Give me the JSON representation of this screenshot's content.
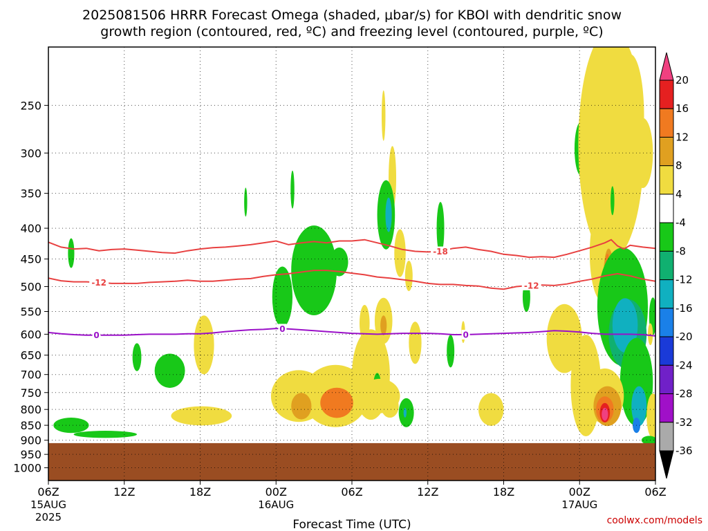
{
  "title_line1": "2025081506 HRRR Forecast Omega (shaded, μbar/s) for KBOI with dendritic snow",
  "title_line2": "growth region (contoured, red, ºC) and freezing level (contoured, purple, ºC)",
  "credit": "coolwx.com/models",
  "chart_data": {
    "type": "heatmap",
    "xlabel": "Forecast Time (UTC)",
    "x_ticks": [
      {
        "hour": 0,
        "label": "06Z",
        "sub1": "15AUG",
        "sub2": "2025"
      },
      {
        "hour": 6,
        "label": "12Z",
        "sub1": "",
        "sub2": ""
      },
      {
        "hour": 12,
        "label": "18Z",
        "sub1": "",
        "sub2": ""
      },
      {
        "hour": 18,
        "label": "00Z",
        "sub1": "16AUG",
        "sub2": ""
      },
      {
        "hour": 24,
        "label": "06Z",
        "sub1": "",
        "sub2": ""
      },
      {
        "hour": 30,
        "label": "12Z",
        "sub1": "",
        "sub2": ""
      },
      {
        "hour": 36,
        "label": "18Z",
        "sub1": "",
        "sub2": ""
      },
      {
        "hour": 42,
        "label": "00Z",
        "sub1": "17AUG",
        "sub2": ""
      },
      {
        "hour": 48,
        "label": "06Z",
        "sub1": "",
        "sub2": ""
      }
    ],
    "x_range_hours": [
      0,
      48
    ],
    "y_axis": "pressure (hPa), log scale, reversed",
    "y_range_hpa": [
      1050,
      200
    ],
    "y_ticks": [
      250,
      300,
      350,
      400,
      450,
      500,
      550,
      600,
      650,
      700,
      750,
      800,
      850,
      900,
      950,
      1000
    ],
    "grid": true,
    "ground_top_hpa": 910,
    "ground_color": "#9a4d22",
    "colorbar": {
      "labels": [
        "20",
        "16",
        "12",
        "8",
        "4",
        "-4",
        "-8",
        "-12",
        "-16",
        "-20",
        "-24",
        "-28",
        "-32",
        "-36"
      ],
      "colors": [
        "#f04080",
        "#e52020",
        "#f07a20",
        "#e0a020",
        "#f0dc40",
        "#ffffff",
        "#18c818",
        "#10b070",
        "#10b0c0",
        "#1a80e8",
        "#1a3ad8",
        "#7020c8",
        "#a010c8",
        "#aaaaaa",
        "#000000"
      ]
    },
    "contours": [
      {
        "name": "-18",
        "color": "#e84040",
        "label": "-18",
        "label_hour": 31.0,
        "points": [
          [
            0,
            422
          ],
          [
            1,
            430
          ],
          [
            2,
            433
          ],
          [
            3,
            432
          ],
          [
            4,
            436
          ],
          [
            5,
            434
          ],
          [
            6,
            433
          ],
          [
            7,
            435
          ],
          [
            8,
            437
          ],
          [
            9,
            439
          ],
          [
            10,
            440
          ],
          [
            11,
            436
          ],
          [
            12,
            433
          ],
          [
            13,
            431
          ],
          [
            14,
            430
          ],
          [
            15,
            428
          ],
          [
            16,
            426
          ],
          [
            17,
            423
          ],
          [
            18,
            420
          ],
          [
            19,
            426
          ],
          [
            20,
            423
          ],
          [
            21,
            421
          ],
          [
            22,
            423
          ],
          [
            23,
            420
          ],
          [
            24,
            420
          ],
          [
            25,
            418
          ],
          [
            26,
            423
          ],
          [
            27,
            428
          ],
          [
            28,
            434
          ],
          [
            29,
            437
          ],
          [
            30,
            438
          ],
          [
            31,
            437
          ],
          [
            32,
            432
          ],
          [
            33,
            430
          ],
          [
            34,
            434
          ],
          [
            35,
            437
          ],
          [
            36,
            442
          ],
          [
            37,
            444
          ],
          [
            38,
            447
          ],
          [
            39,
            446
          ],
          [
            40,
            447
          ],
          [
            41,
            442
          ],
          [
            42,
            436
          ],
          [
            43,
            430
          ],
          [
            44,
            423
          ],
          [
            44.5,
            418
          ],
          [
            45,
            428
          ],
          [
            45.5,
            433
          ],
          [
            46,
            427
          ],
          [
            47,
            430
          ],
          [
            48,
            432
          ]
        ]
      },
      {
        "name": "-12",
        "color": "#e84040",
        "label": "-12",
        "label_hour": 4.0,
        "points": [
          [
            0,
            484
          ],
          [
            1,
            489
          ],
          [
            2,
            491
          ],
          [
            3,
            491
          ],
          [
            4,
            492
          ],
          [
            5,
            494
          ],
          [
            6,
            494
          ],
          [
            7,
            494
          ],
          [
            8,
            492
          ],
          [
            9,
            491
          ],
          [
            10,
            490
          ],
          [
            11,
            488
          ],
          [
            12,
            490
          ],
          [
            13,
            490
          ],
          [
            14,
            488
          ],
          [
            15,
            486
          ],
          [
            16,
            485
          ],
          [
            17,
            481
          ],
          [
            18,
            478
          ],
          [
            19,
            476
          ],
          [
            20,
            473
          ],
          [
            21,
            470
          ],
          [
            22,
            470
          ],
          [
            23,
            472
          ],
          [
            24,
            475
          ],
          [
            25,
            478
          ],
          [
            26,
            482
          ],
          [
            27,
            484
          ],
          [
            28,
            487
          ],
          [
            29,
            490
          ],
          [
            30,
            494
          ],
          [
            31,
            496
          ],
          [
            32,
            496
          ],
          [
            33,
            498
          ],
          [
            34,
            499
          ],
          [
            35,
            503
          ],
          [
            36,
            505
          ],
          [
            37,
            500
          ],
          [
            38,
            498
          ],
          [
            39,
            497
          ],
          [
            40,
            498
          ],
          [
            41,
            495
          ],
          [
            42,
            490
          ],
          [
            43,
            486
          ],
          [
            44,
            480
          ],
          [
            45,
            476
          ],
          [
            46,
            480
          ],
          [
            47,
            486
          ],
          [
            48,
            490
          ]
        ]
      },
      {
        "name": "0",
        "color": "#9a10c8",
        "label": "0",
        "label_hour": 3.8,
        "points": [
          [
            0,
            596
          ],
          [
            1,
            599
          ],
          [
            2,
            601
          ],
          [
            3,
            602
          ],
          [
            4,
            602
          ],
          [
            5,
            602
          ],
          [
            6,
            602
          ],
          [
            7,
            601
          ],
          [
            8,
            600
          ],
          [
            9,
            600
          ],
          [
            10,
            600
          ],
          [
            11,
            599
          ],
          [
            12,
            599
          ],
          [
            13,
            597
          ],
          [
            14,
            594
          ],
          [
            15,
            592
          ],
          [
            16,
            590
          ],
          [
            17,
            589
          ],
          [
            18,
            587
          ],
          [
            19,
            588
          ],
          [
            20,
            590
          ],
          [
            21,
            592
          ],
          [
            22,
            594
          ],
          [
            23,
            596
          ],
          [
            24,
            598
          ],
          [
            25,
            599
          ],
          [
            26,
            600
          ],
          [
            27,
            599
          ],
          [
            28,
            598
          ],
          [
            29,
            598
          ],
          [
            30,
            598
          ],
          [
            31,
            599
          ],
          [
            32,
            601
          ],
          [
            33,
            601
          ],
          [
            34,
            600
          ],
          [
            35,
            599
          ],
          [
            36,
            598
          ],
          [
            37,
            597
          ],
          [
            38,
            596
          ],
          [
            39,
            594
          ],
          [
            40,
            592
          ],
          [
            41,
            593
          ],
          [
            42,
            595
          ],
          [
            43,
            598
          ],
          [
            44,
            600
          ],
          [
            45,
            600
          ],
          [
            46,
            600
          ],
          [
            47,
            601
          ],
          [
            48,
            604
          ]
        ]
      }
    ],
    "contour_extra_labels": [
      {
        "contour": "-12",
        "hour": 38.2
      },
      {
        "contour": "0",
        "hour": 18.5
      },
      {
        "contour": "0",
        "hour": 33.0
      }
    ],
    "omega_cells": [
      {
        "x": 1.8,
        "p": 850,
        "rx": 1.4,
        "rp": 25,
        "v": -6
      },
      {
        "x": 4.5,
        "p": 880,
        "rx": 2.5,
        "rp": 12,
        "v": -5
      },
      {
        "x": 1.8,
        "p": 440,
        "rx": 0.25,
        "rp": 25,
        "v": -5
      },
      {
        "x": 7.0,
        "p": 655,
        "rx": 0.35,
        "rp": 35,
        "v": -6
      },
      {
        "x": 9.6,
        "p": 690,
        "rx": 1.2,
        "rp": 45,
        "v": -7
      },
      {
        "x": 12.1,
        "p": 820,
        "rx": 2.4,
        "rp": 30,
        "v": 5
      },
      {
        "x": 12.3,
        "p": 625,
        "rx": 0.8,
        "rp": 70,
        "v": 5
      },
      {
        "x": 18.5,
        "p": 520,
        "rx": 0.8,
        "rp": 60,
        "v": -6
      },
      {
        "x": 21.0,
        "p": 470,
        "rx": 1.8,
        "rp": 80,
        "v": -6
      },
      {
        "x": 23.0,
        "p": 455,
        "rx": 0.7,
        "rp": 25,
        "v": -5
      },
      {
        "x": 19.8,
        "p": 760,
        "rx": 2.2,
        "rp": 75,
        "v": 6
      },
      {
        "x": 22.7,
        "p": 760,
        "rx": 2.6,
        "rp": 90,
        "v": 7
      },
      {
        "x": 25.5,
        "p": 700,
        "rx": 1.5,
        "rp": 120,
        "v": 5
      },
      {
        "x": 20.0,
        "p": 790,
        "rx": 0.8,
        "rp": 40,
        "v": 10
      },
      {
        "x": 22.8,
        "p": 780,
        "rx": 1.3,
        "rp": 45,
        "v": 12
      },
      {
        "x": 22.9,
        "p": 780,
        "rx": 0.5,
        "rp": 20,
        "v": 15
      },
      {
        "x": 26.0,
        "p": 730,
        "rx": 0.3,
        "rp": 35,
        "v": -6
      },
      {
        "x": 26.2,
        "p": 760,
        "rx": 1.6,
        "rp": 50,
        "v": 5
      },
      {
        "x": 25.0,
        "p": 575,
        "rx": 0.4,
        "rp": 40,
        "v": 5
      },
      {
        "x": 26.5,
        "p": 260,
        "rx": 0.15,
        "rp": 25,
        "v": 5
      },
      {
        "x": 27.2,
        "p": 330,
        "rx": 0.3,
        "rp": 40,
        "v": 5
      },
      {
        "x": 26.7,
        "p": 380,
        "rx": 0.7,
        "rp": 50,
        "v": -7
      },
      {
        "x": 26.9,
        "p": 380,
        "rx": 0.25,
        "rp": 25,
        "v": -12
      },
      {
        "x": 27.8,
        "p": 440,
        "rx": 0.45,
        "rp": 40,
        "v": 5
      },
      {
        "x": 26.5,
        "p": 570,
        "rx": 0.7,
        "rp": 50,
        "v": 6
      },
      {
        "x": 26.5,
        "p": 580,
        "rx": 0.25,
        "rp": 22,
        "v": 10
      },
      {
        "x": 27.0,
        "p": 790,
        "rx": 0.7,
        "rp": 35,
        "v": 5
      },
      {
        "x": 28.3,
        "p": 810,
        "rx": 0.6,
        "rp": 45,
        "v": -7
      },
      {
        "x": 28.2,
        "p": 810,
        "rx": 0.12,
        "rp": 15,
        "v": -14
      },
      {
        "x": 28.5,
        "p": 480,
        "rx": 0.3,
        "rp": 28,
        "v": 5
      },
      {
        "x": 29.0,
        "p": 620,
        "rx": 0.5,
        "rp": 50,
        "v": 6
      },
      {
        "x": 31.0,
        "p": 400,
        "rx": 0.3,
        "rp": 40,
        "v": -6
      },
      {
        "x": 15.6,
        "p": 362,
        "rx": 0.12,
        "rp": 20,
        "v": -5
      },
      {
        "x": 19.3,
        "p": 345,
        "rx": 0.15,
        "rp": 25,
        "v": -5
      },
      {
        "x": 31.8,
        "p": 640,
        "rx": 0.3,
        "rp": 40,
        "v": -6
      },
      {
        "x": 32.8,
        "p": 595,
        "rx": 0.15,
        "rp": 25,
        "v": 5
      },
      {
        "x": 35.0,
        "p": 800,
        "rx": 1.0,
        "rp": 50,
        "v": 5
      },
      {
        "x": 37.8,
        "p": 520,
        "rx": 0.3,
        "rp": 30,
        "v": -5
      },
      {
        "x": 40.8,
        "p": 610,
        "rx": 1.4,
        "rp": 80,
        "v": 5
      },
      {
        "x": 42.5,
        "p": 730,
        "rx": 1.2,
        "rp": 140,
        "v": 5
      },
      {
        "x": 42.1,
        "p": 295,
        "rx": 0.5,
        "rp": 30,
        "v": -6
      },
      {
        "x": 44.3,
        "p": 265,
        "rx": 1.2,
        "rp": 60,
        "v": 7
      },
      {
        "x": 44.3,
        "p": 265,
        "rx": 0.7,
        "rp": 40,
        "v": 12
      },
      {
        "x": 44.3,
        "p": 265,
        "rx": 0.4,
        "rp": 30,
        "v": 17
      },
      {
        "x": 44.5,
        "p": 290,
        "rx": 2.6,
        "rp": 120,
        "v": 5
      },
      {
        "x": 46.0,
        "p": 260,
        "rx": 1.1,
        "rp": 60,
        "v": 6
      },
      {
        "x": 47.0,
        "p": 300,
        "rx": 0.8,
        "rp": 40,
        "v": 5
      },
      {
        "x": 44.6,
        "p": 360,
        "rx": 0.15,
        "rp": 20,
        "v": -5
      },
      {
        "x": 43.8,
        "p": 440,
        "rx": 1.0,
        "rp": 80,
        "v": 5
      },
      {
        "x": 44.0,
        "p": 470,
        "rx": 0.6,
        "rp": 55,
        "v": 6
      },
      {
        "x": 44.3,
        "p": 480,
        "rx": 0.4,
        "rp": 50,
        "v": 10
      },
      {
        "x": 44.2,
        "p": 470,
        "rx": 0.2,
        "rp": 30,
        "v": 14
      },
      {
        "x": 45.4,
        "p": 540,
        "rx": 2.0,
        "rp": 120,
        "v": -6
      },
      {
        "x": 45.8,
        "p": 600,
        "rx": 1.5,
        "rp": 80,
        "v": -9
      },
      {
        "x": 45.6,
        "p": 580,
        "rx": 1.0,
        "rp": 60,
        "v": -13
      },
      {
        "x": 46.9,
        "p": 660,
        "rx": 0.3,
        "rp": 40,
        "v": -17
      },
      {
        "x": 46.9,
        "p": 680,
        "rx": 0.15,
        "rp": 25,
        "v": -22
      },
      {
        "x": 46.5,
        "p": 720,
        "rx": 1.3,
        "rp": 120,
        "v": -7
      },
      {
        "x": 46.7,
        "p": 790,
        "rx": 0.6,
        "rp": 60,
        "v": -12
      },
      {
        "x": 46.5,
        "p": 850,
        "rx": 0.3,
        "rp": 25,
        "v": -16
      },
      {
        "x": 44.0,
        "p": 760,
        "rx": 1.5,
        "rp": 80,
        "v": 5
      },
      {
        "x": 44.2,
        "p": 790,
        "rx": 1.1,
        "rp": 60,
        "v": 8
      },
      {
        "x": 44.0,
        "p": 800,
        "rx": 0.7,
        "rp": 40,
        "v": 12
      },
      {
        "x": 44.0,
        "p": 810,
        "rx": 0.4,
        "rp": 30,
        "v": 16
      },
      {
        "x": 44.0,
        "p": 815,
        "rx": 0.25,
        "rp": 20,
        "v": 20
      },
      {
        "x": 47.8,
        "p": 820,
        "rx": 0.5,
        "rp": 70,
        "v": 5
      },
      {
        "x": 47.5,
        "p": 900,
        "rx": 0.6,
        "rp": 15,
        "v": -6
      },
      {
        "x": 47.8,
        "p": 560,
        "rx": 0.3,
        "rp": 40,
        "v": -6
      },
      {
        "x": 47.6,
        "p": 600,
        "rx": 0.2,
        "rp": 25,
        "v": 5
      }
    ]
  }
}
